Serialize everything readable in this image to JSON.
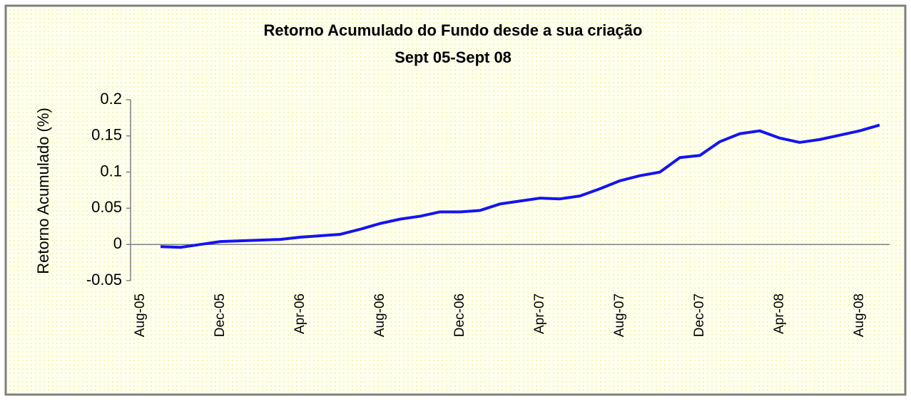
{
  "chart_data": {
    "type": "line",
    "title": "Retorno Acumulado do Fundo desde a sua criação",
    "subtitle": "Sept 05-Sept 08",
    "y_label": "Retorno Acumulado (%)",
    "categories": [
      "Aug-05",
      null,
      null,
      null,
      "Dec-05",
      null,
      null,
      null,
      "Apr-06",
      null,
      null,
      null,
      "Aug-06",
      null,
      null,
      null,
      "Dec-06",
      null,
      null,
      null,
      "Apr-07",
      null,
      null,
      null,
      "Aug-07",
      null,
      null,
      null,
      "Dec-07",
      null,
      null,
      null,
      "Apr-08",
      null,
      null,
      null,
      "Aug-08",
      null
    ],
    "series": [
      {
        "color": "#1414f0",
        "values": [
          null,
          -0.003,
          -0.004,
          0,
          0.004,
          0.005,
          0.006,
          0.007,
          0.01,
          0.012,
          0.014,
          0.021,
          0.029,
          0.035,
          0.039,
          0.045,
          0.045,
          0.047,
          0.056,
          0.06,
          0.064,
          0.063,
          0.067,
          0.077,
          0.088,
          0.095,
          0.1,
          0.12,
          0.123,
          0.142,
          0.153,
          0.157,
          0.147,
          0.141,
          0.145,
          0.151,
          0.157,
          0.165
        ]
      }
    ],
    "ylim": [
      -0.05,
      0.2
    ],
    "yticks": [
      -0.05,
      0,
      0.05,
      0.1,
      0.15,
      0.2
    ],
    "grid": false
  }
}
